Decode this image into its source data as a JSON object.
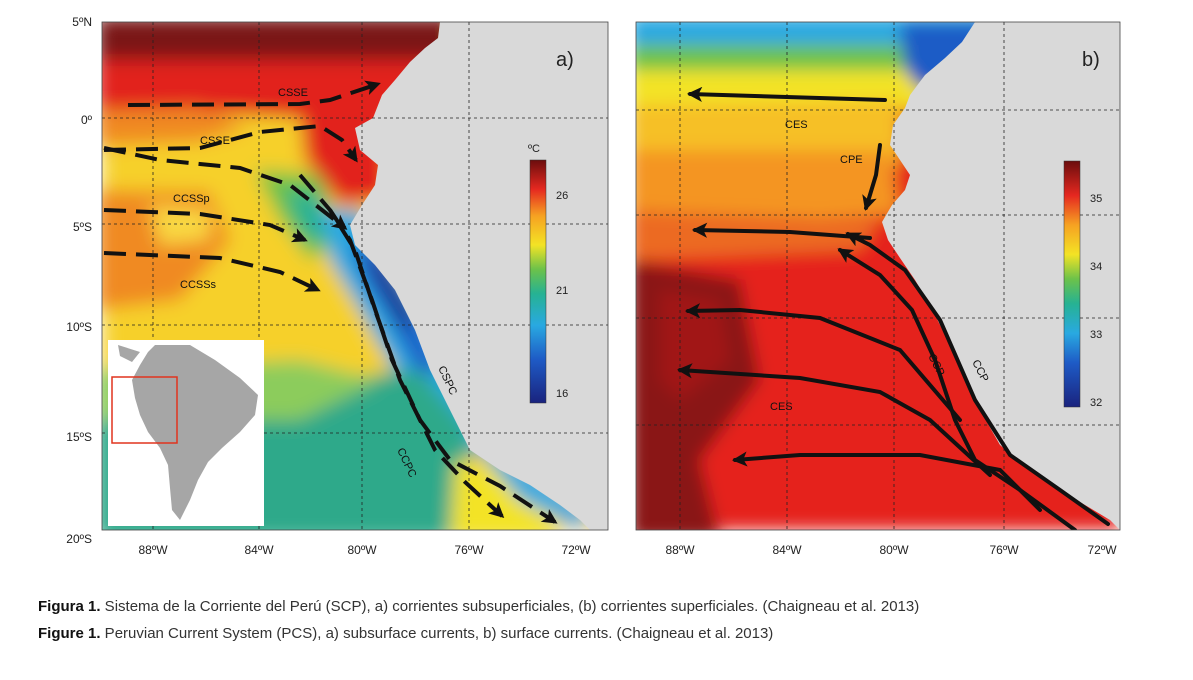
{
  "lat_labels": [
    "5ºN",
    "0º",
    "5ºS",
    "10ºS",
    "15ºS",
    "20ºS"
  ],
  "panel_a": {
    "tag": "a)",
    "lon_labels": [
      "88ºW",
      "84ºW",
      "80ºW",
      "76ºW",
      "72ºW"
    ],
    "colorbar": {
      "unit": "ºC",
      "ticks": [
        "26",
        "21",
        "16"
      ],
      "range": [
        16,
        27
      ]
    },
    "currents": {
      "csse_1": "CSSE",
      "csse_2": "CSSE",
      "ccssp": "CCSSp",
      "ccsss": "CCSSs",
      "cspc": "CSPC",
      "ccpc": "CCPC"
    }
  },
  "panel_b": {
    "tag": "b)",
    "lon_labels": [
      "88ºW",
      "84ºW",
      "80ºW",
      "76ºW",
      "72ºW"
    ],
    "colorbar": {
      "unit": "",
      "ticks": [
        "35",
        "34",
        "33",
        "32"
      ],
      "range": [
        31.9,
        35.7
      ]
    },
    "currents": {
      "ces_north": "CES",
      "cpe": "CPE",
      "ces_south": "CES",
      "ccp_inner": "CCP",
      "ccp_outer": "CCP"
    }
  },
  "caption": {
    "es_label": "Figura 1.",
    "es_text": " Sistema de la Corriente del Perú (SCP), a) corrientes subsuperficiales, (b) corrientes superficiales. (Chaigneau et al. 2013)",
    "en_label": "Figure 1.",
    "en_text": " Peruvian Current System (PCS), a) subsurface currents, b) surface currents. (Chaigneau et al. 2013)"
  },
  "colors": {
    "land": "#d9d9d9",
    "inset_box": "#e0341e",
    "arrow": "#111111",
    "temp_warm": "#e0231e",
    "temp_cold": "#1c2e8c",
    "salinity_high": "#e5221d"
  }
}
